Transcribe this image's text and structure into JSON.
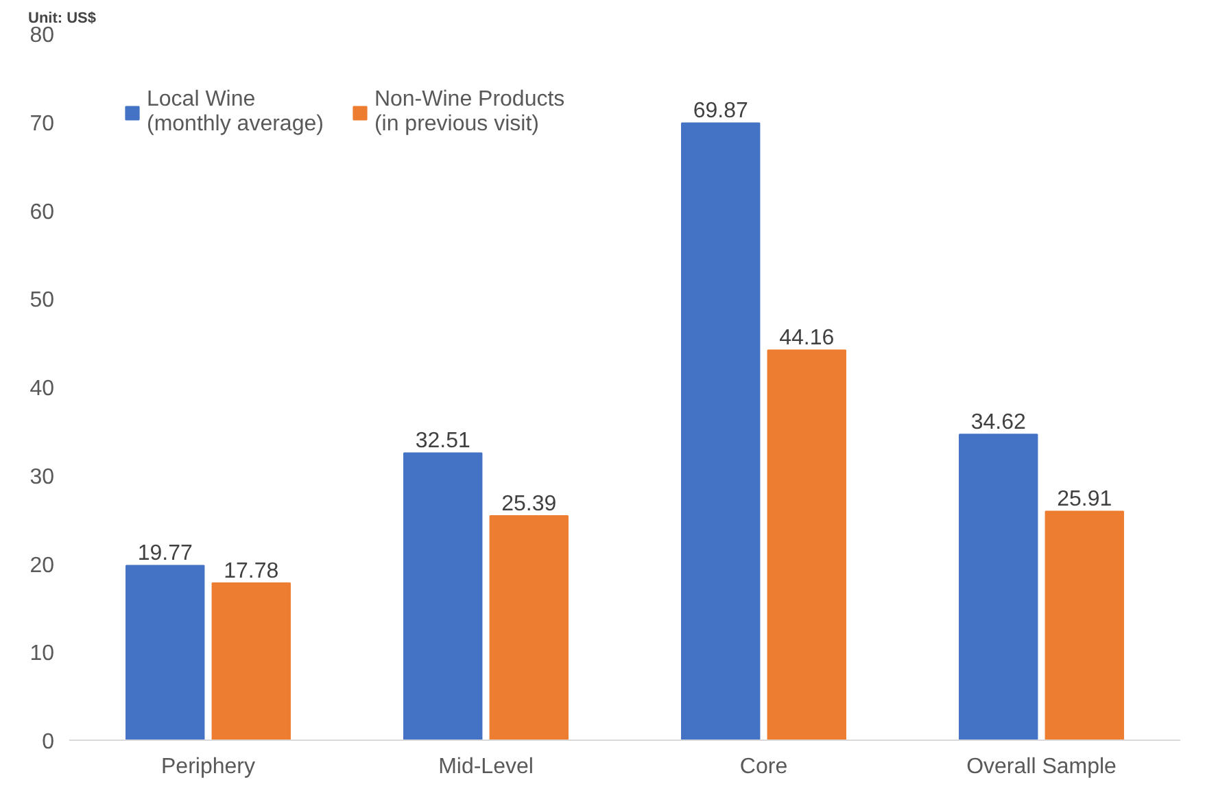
{
  "chart_data": {
    "type": "bar",
    "categories": [
      "Periphery",
      "Mid-Level",
      "Core",
      "Overall Sample"
    ],
    "series": [
      {
        "name": "Local Wine\n(monthly average)",
        "color": "#4472c4",
        "values": [
          19.77,
          32.51,
          69.87,
          34.62
        ]
      },
      {
        "name": "Non-Wine Products\n(in previous visit)",
        "color": "#ed7d31",
        "values": [
          17.78,
          25.39,
          44.16,
          25.91
        ]
      }
    ],
    "ylim": [
      0,
      80
    ],
    "yticks": [
      0,
      10,
      20,
      30,
      40,
      50,
      60,
      70,
      80
    ],
    "annotations": [
      "Unit: US$"
    ],
    "data_labels": true,
    "grid": false,
    "legend": "top left"
  }
}
